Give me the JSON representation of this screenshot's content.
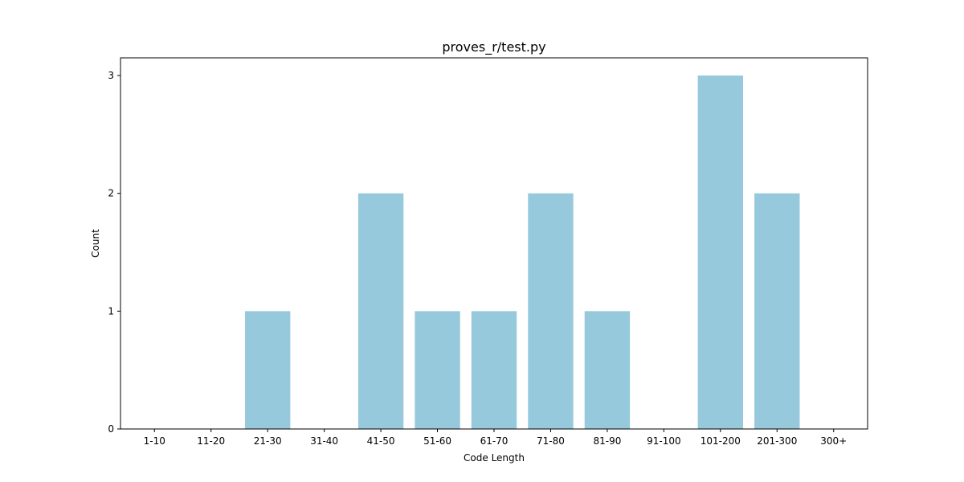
{
  "chart_data": {
    "type": "bar",
    "title": "proves_r/test.py",
    "xlabel": "Code Length",
    "ylabel": "Count",
    "categories": [
      "1-10",
      "11-20",
      "21-30",
      "31-40",
      "41-50",
      "51-60",
      "61-70",
      "71-80",
      "81-90",
      "91-100",
      "101-200",
      "201-300",
      "300+"
    ],
    "values": [
      0,
      0,
      1,
      0,
      2,
      1,
      1,
      2,
      1,
      0,
      3,
      2,
      0
    ],
    "ylim": [
      0,
      3.15
    ],
    "yticks": [
      0,
      1,
      2,
      3
    ],
    "bar_color": "#96c9dc",
    "grid": false,
    "legend": "none"
  }
}
